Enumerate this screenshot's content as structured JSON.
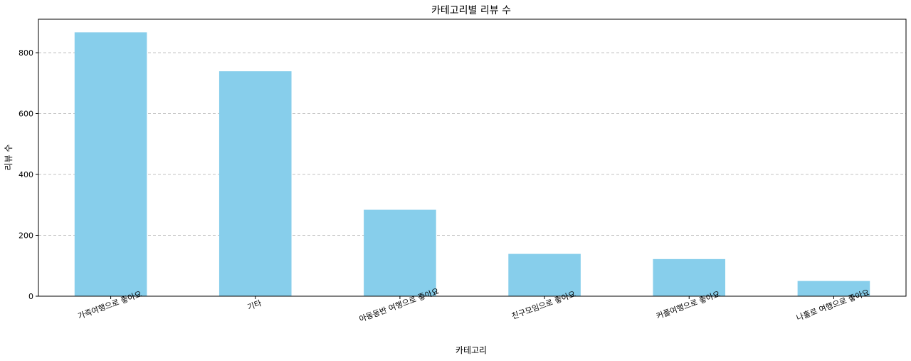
{
  "chart_data": {
    "type": "bar",
    "title": "카테고리별 리뷰 수",
    "xlabel": "카테고리",
    "ylabel": "리뷰 수",
    "categories": [
      "가족여행으로 좋아요",
      "기타",
      "아동동반 여행으로 좋아요",
      "친구모임으로 좋아요",
      "커플여행으로 좋아요",
      "나홀로 여행으로 좋아요"
    ],
    "values": [
      867,
      739,
      284,
      139,
      122,
      50
    ],
    "ylim": [
      0,
      910
    ],
    "yticks": [
      0,
      200,
      400,
      600,
      800
    ],
    "grid": "y-dashed",
    "bar_color": "#87ceeb"
  }
}
